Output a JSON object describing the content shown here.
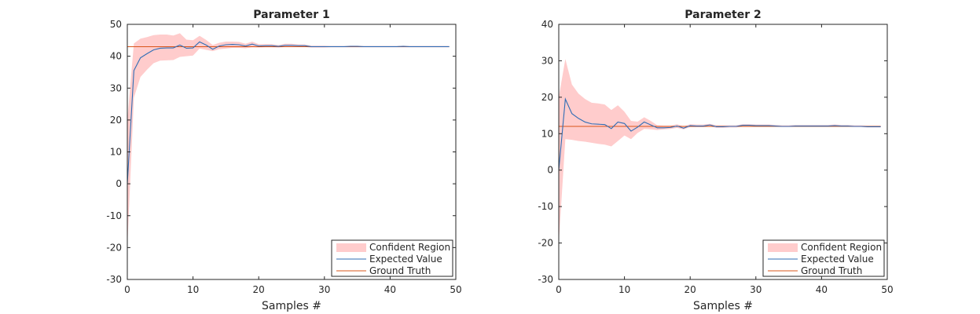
{
  "colors": {
    "band": "#ffcccc",
    "expected": "#2f6db5",
    "truth": "#d9541a",
    "axis": "#262626"
  },
  "chart_data": [
    {
      "type": "area",
      "title": "Parameter 1",
      "xlabel": "Samples #",
      "ylabel": "",
      "xlim": [
        0,
        50
      ],
      "ylim": [
        -30,
        50
      ],
      "xticks": [
        "0",
        "10",
        "20",
        "30",
        "40",
        "50"
      ],
      "yticks": [
        "-30",
        "-20",
        "-10",
        "0",
        "10",
        "20",
        "30",
        "40",
        "50"
      ],
      "legend_position": "bottom-right",
      "legend": [
        "Confident Region",
        "Expected Value",
        "Ground Truth"
      ],
      "ground_truth": 43,
      "x": [
        0,
        1,
        2,
        3,
        4,
        5,
        6,
        7,
        8,
        9,
        10,
        11,
        12,
        13,
        14,
        15,
        16,
        17,
        18,
        19,
        20,
        21,
        22,
        23,
        24,
        25,
        26,
        27,
        28,
        29,
        30,
        31,
        32,
        33,
        34,
        35,
        36,
        37,
        38,
        39,
        40,
        41,
        42,
        43,
        44,
        45,
        46,
        47,
        48,
        49
      ],
      "series": [
        {
          "name": "Expected Value",
          "values": [
            0,
            35.5,
            39.5,
            40.8,
            42,
            42.5,
            42.6,
            42.6,
            43.5,
            42.5,
            42.6,
            44.5,
            43.5,
            42.2,
            43.2,
            43.6,
            43.7,
            43.6,
            43.2,
            43.8,
            43.2,
            43.3,
            43.3,
            43.1,
            43.4,
            43.4,
            43.3,
            43.3,
            43,
            43,
            43,
            43,
            43,
            43,
            43.1,
            43.1,
            43,
            43,
            43,
            43,
            43,
            43,
            43.1,
            43,
            43,
            43,
            43,
            43,
            43,
            43
          ]
        },
        {
          "name": "Confident Region",
          "lower": [
            -20,
            27,
            33.5,
            35.8,
            37.8,
            38.6,
            38.7,
            38.8,
            39.8,
            40,
            40.2,
            42.4,
            42,
            41.6,
            42.2,
            42.4,
            42.6,
            42.6,
            42.5,
            42.8,
            42.7,
            42.8,
            42.8,
            42.7,
            42.9,
            42.9,
            42.9,
            42.9,
            42.7,
            42.7,
            42.7,
            42.8,
            42.8,
            42.8,
            42.8,
            42.8,
            42.8,
            42.8,
            42.8,
            42.8,
            42.8,
            42.8,
            42.8,
            42.8,
            42.8,
            42.8,
            42.8,
            42.8,
            42.8,
            42.8
          ],
          "upper": [
            20,
            44,
            45.5,
            46,
            46.6,
            46.8,
            46.8,
            46.5,
            47.2,
            45.2,
            45,
            46.4,
            45.1,
            43.5,
            44.2,
            44.6,
            44.6,
            44.5,
            43.9,
            44.6,
            43.8,
            43.8,
            43.8,
            43.5,
            43.9,
            43.9,
            43.7,
            43.7,
            43.3,
            43.3,
            43.3,
            43.2,
            43.2,
            43.2,
            43.3,
            43.3,
            43.2,
            43.2,
            43.2,
            43.2,
            43.2,
            43.2,
            43.3,
            43.2,
            43.2,
            43.2,
            43.2,
            43.2,
            43.2,
            43.2
          ]
        }
      ]
    },
    {
      "type": "area",
      "title": "Parameter 2",
      "xlabel": "Samples #",
      "ylabel": "",
      "xlim": [
        0,
        50
      ],
      "ylim": [
        -30,
        40
      ],
      "xticks": [
        "0",
        "10",
        "20",
        "30",
        "40",
        "50"
      ],
      "yticks": [
        "-30",
        "-20",
        "-10",
        "0",
        "10",
        "20",
        "30",
        "40"
      ],
      "legend_position": "bottom-right",
      "legend": [
        "Confident Region",
        "Expected Value",
        "Ground Truth"
      ],
      "ground_truth": 12,
      "x": [
        0,
        1,
        2,
        3,
        4,
        5,
        6,
        7,
        8,
        9,
        10,
        11,
        12,
        13,
        14,
        15,
        16,
        17,
        18,
        19,
        20,
        21,
        22,
        23,
        24,
        25,
        26,
        27,
        28,
        29,
        30,
        31,
        32,
        33,
        34,
        35,
        36,
        37,
        38,
        39,
        40,
        41,
        42,
        43,
        44,
        45,
        46,
        47,
        48,
        49
      ],
      "series": [
        {
          "name": "Expected Value",
          "values": [
            0,
            19.5,
            15.5,
            14.2,
            13.2,
            12.7,
            12.6,
            12.5,
            11.4,
            13.2,
            12.8,
            10.7,
            11.8,
            13.2,
            12.4,
            11.6,
            11.6,
            11.7,
            12.1,
            11.5,
            12.2,
            12.1,
            12.1,
            12.4,
            11.9,
            11.9,
            12,
            12,
            12.3,
            12.3,
            12.2,
            12.2,
            12.2,
            12.1,
            12,
            12,
            12.1,
            12.1,
            12.1,
            12.1,
            12.1,
            12.1,
            12.2,
            12.1,
            12.1,
            12,
            12,
            11.9,
            11.9,
            11.9
          ]
        },
        {
          "name": "Confident Region",
          "lower": [
            -20,
            8.5,
            8.3,
            8,
            7.8,
            7.5,
            7.2,
            7,
            6.5,
            8,
            9.5,
            8.5,
            10.2,
            11.3,
            11.2,
            11,
            11.2,
            11.3,
            11.6,
            11.2,
            11.8,
            11.8,
            11.8,
            12,
            11.6,
            11.6,
            11.7,
            11.7,
            12,
            12,
            11.9,
            11.9,
            11.9,
            11.9,
            11.8,
            11.8,
            11.9,
            11.9,
            11.9,
            11.9,
            11.9,
            11.9,
            11.9,
            11.9,
            11.9,
            11.8,
            11.8,
            11.7,
            11.7,
            11.7
          ],
          "upper": [
            20,
            30.5,
            23.5,
            21,
            19.5,
            18.5,
            18.3,
            18,
            16.5,
            17.8,
            16,
            13.5,
            13.3,
            14.5,
            13.5,
            12.3,
            12.2,
            12.2,
            12.6,
            12,
            12.6,
            12.5,
            12.5,
            12.7,
            12.3,
            12.3,
            12.3,
            12.3,
            12.6,
            12.6,
            12.5,
            12.5,
            12.5,
            12.4,
            12.3,
            12.3,
            12.4,
            12.4,
            12.4,
            12.4,
            12.4,
            12.4,
            12.5,
            12.4,
            12.4,
            12.3,
            12.3,
            12.2,
            12.2,
            12.2
          ]
        }
      ]
    }
  ]
}
